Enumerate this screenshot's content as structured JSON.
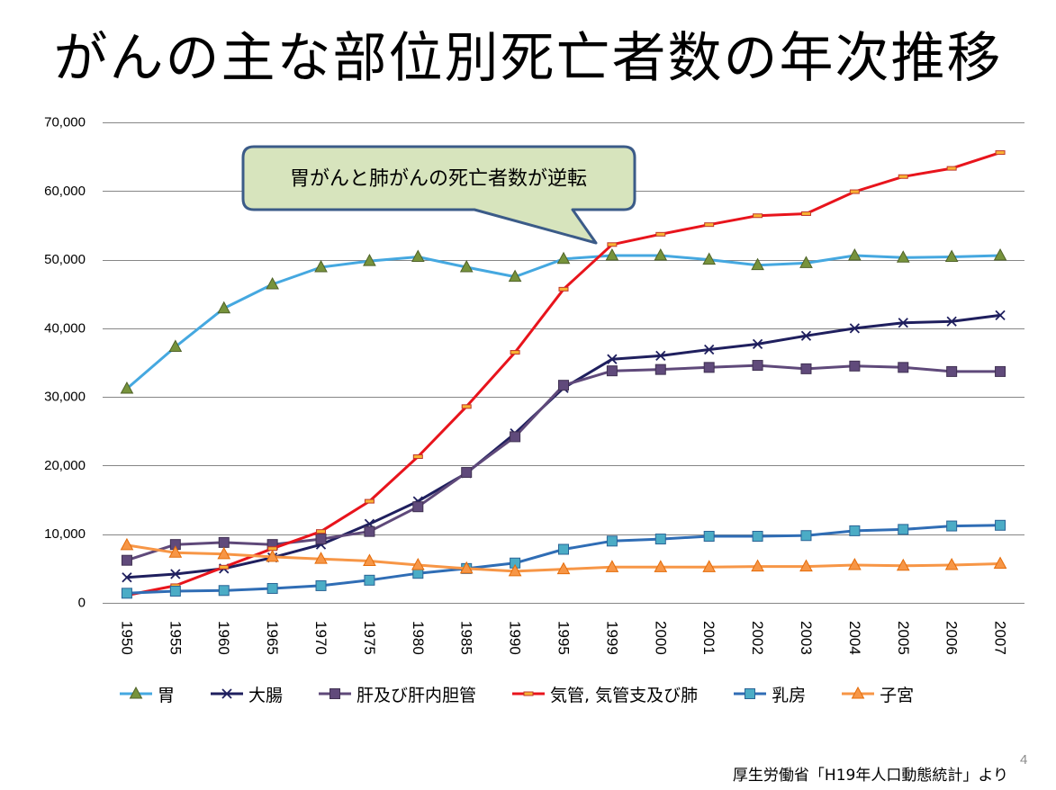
{
  "chart_data": {
    "type": "line",
    "title": "がんの主な部位別死亡者数の年次推移",
    "categories": [
      "1950",
      "1955",
      "1960",
      "1965",
      "1970",
      "1975",
      "1980",
      "1985",
      "1990",
      "1995",
      "1999",
      "2000",
      "2001",
      "2002",
      "2003",
      "2004",
      "2005",
      "2006",
      "2007"
    ],
    "ylim": [
      0,
      70000
    ],
    "yticks": [
      0,
      10000,
      20000,
      30000,
      40000,
      50000,
      60000,
      70000
    ],
    "ytick_labels": [
      "0",
      "10,000",
      "20,000",
      "30,000",
      "40,000",
      "50,000",
      "60,000",
      "70,000"
    ],
    "grid": true,
    "legend": "bottom",
    "series": [
      {
        "name": "胃",
        "color": "#45a8e0",
        "marker": "triangle",
        "marker_color": "#77933c",
        "marker_edge": "#4f6228",
        "values": [
          31200,
          37300,
          42900,
          46400,
          48900,
          49800,
          50400,
          48900,
          47500,
          50100,
          50600,
          50600,
          50000,
          49200,
          49500,
          50600,
          50300,
          50400,
          50600
        ]
      },
      {
        "name": "大腸",
        "color": "#1f1f5e",
        "marker": "x",
        "marker_color": "#1f1f5e",
        "marker_edge": "#1f1f5e",
        "values": [
          3700,
          4200,
          5000,
          6600,
          8500,
          11500,
          14800,
          18900,
          24700,
          31300,
          35500,
          36000,
          36900,
          37700,
          38900,
          40000,
          40800,
          41000,
          41900
        ]
      },
      {
        "name": "肝及び肝内胆管",
        "color": "#5f497a",
        "marker": "square",
        "marker_color": "#604a7b",
        "marker_edge": "#403152",
        "values": [
          6200,
          8500,
          8800,
          8500,
          9300,
          10400,
          14000,
          19000,
          24200,
          31700,
          33800,
          34000,
          34300,
          34600,
          34100,
          34500,
          34300,
          33700,
          33700
        ]
      },
      {
        "name": "気管, 気管支及び肺",
        "color": "#e8141c",
        "marker": "dash",
        "marker_color": "#f9b233",
        "marker_edge": "#c0392b",
        "values": [
          1100,
          2500,
          5200,
          7900,
          10400,
          14800,
          21300,
          28600,
          36500,
          45700,
          52200,
          53700,
          55100,
          56400,
          56700,
          59900,
          62100,
          63300,
          65600
        ]
      },
      {
        "name": "乳房",
        "color": "#2f6db5",
        "marker": "square",
        "marker_color": "#4bacc6",
        "marker_edge": "#2a6496",
        "values": [
          1400,
          1700,
          1800,
          2100,
          2500,
          3300,
          4300,
          5000,
          5800,
          7800,
          9000,
          9300,
          9700,
          9700,
          9800,
          10500,
          10700,
          11200,
          11300
        ]
      },
      {
        "name": "子宮",
        "color": "#f79646",
        "marker": "triangle",
        "marker_color": "#f79646",
        "marker_edge": "#e46c0a",
        "values": [
          8400,
          7300,
          7100,
          6700,
          6400,
          6100,
          5500,
          5000,
          4600,
          4900,
          5200,
          5200,
          5200,
          5300,
          5300,
          5500,
          5400,
          5500,
          5700
        ]
      }
    ],
    "annotations": [
      {
        "text": "胃がんと肺がんの死亡者数が逆転"
      }
    ]
  },
  "footer": {
    "source": "厚生労働省「H19年人口動態統計」より",
    "page_number": "4"
  }
}
